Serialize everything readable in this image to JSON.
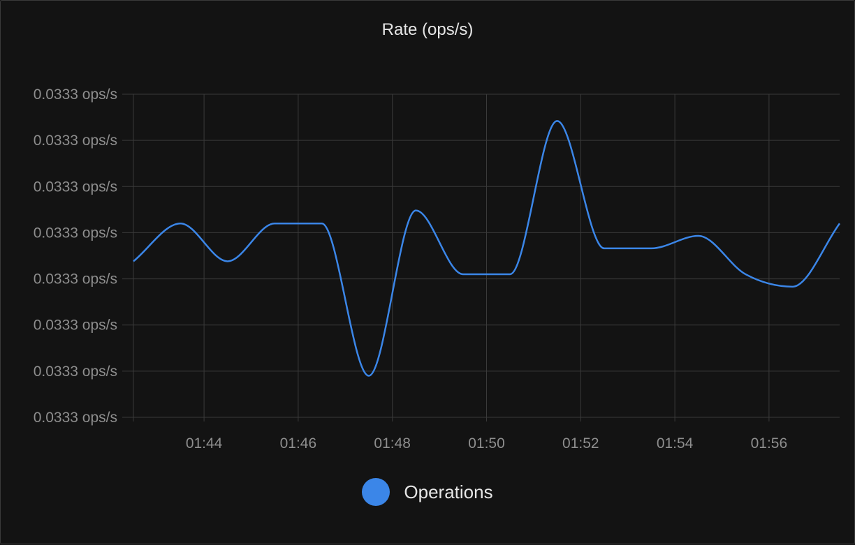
{
  "chart_data": {
    "type": "line",
    "title": "Rate (ops/s)",
    "xlabel": "",
    "ylabel": "",
    "x_ticks": [
      "01:44",
      "01:46",
      "01:48",
      "01:50",
      "01:52",
      "01:54",
      "01:56"
    ],
    "y_ticks": [
      "0.0333 ops/s",
      "0.0333 ops/s",
      "0.0333 ops/s",
      "0.0333 ops/s",
      "0.0333 ops/s",
      "0.0333 ops/s",
      "0.0333 ops/s",
      "0.0333 ops/s"
    ],
    "ylim": [
      0,
      7
    ],
    "grid": true,
    "legend_position": "bottom-center",
    "series": [
      {
        "name": "Operations",
        "color": "#3b86e8",
        "points": [
          {
            "x": "01:42:30",
            "y": 3.38
          },
          {
            "x": "01:43:30",
            "y": 4.2
          },
          {
            "x": "01:44:30",
            "y": 3.38
          },
          {
            "x": "01:45:30",
            "y": 4.2
          },
          {
            "x": "01:46:30",
            "y": 4.2
          },
          {
            "x": "01:47:30",
            "y": 0.9
          },
          {
            "x": "01:48:30",
            "y": 4.48
          },
          {
            "x": "01:49:30",
            "y": 3.1
          },
          {
            "x": "01:50:30",
            "y": 3.1
          },
          {
            "x": "01:51:30",
            "y": 6.42
          },
          {
            "x": "01:52:30",
            "y": 3.66
          },
          {
            "x": "01:53:30",
            "y": 3.66
          },
          {
            "x": "01:54:30",
            "y": 3.93
          },
          {
            "x": "01:55:30",
            "y": 3.1
          },
          {
            "x": "01:56:30",
            "y": 2.83
          },
          {
            "x": "01:57:30",
            "y": 4.2
          }
        ]
      }
    ]
  }
}
